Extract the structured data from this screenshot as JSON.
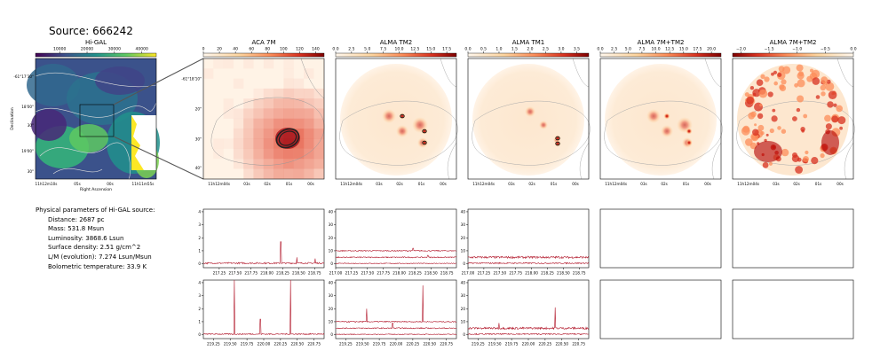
{
  "source_title": "Source: 666242",
  "params": {
    "heading": "Physical parameters of Hi-GAL source:",
    "lines": [
      "Distance: 2687 pc",
      "Mass: 531.8 Msun",
      "Luminosity: 3868.6 Lsun",
      "Surface density: 2.51 g/cm^2",
      "L/M (evolution): 7.274 Lsun/Msun",
      "Bolometric temperature: 33.9 K"
    ]
  },
  "colors": {
    "viridis_low": "#440154",
    "viridis_high": "#fde725",
    "heat_low": "#fff7ec",
    "heat_high": "#7f0000",
    "spectrum": "#b2182b"
  },
  "chart_data": [
    {
      "type": "heatmap",
      "title": "Hi-GAL",
      "xlabel": "Right Ascension",
      "ylabel": "Declination",
      "colorbar_ticks": [
        "10000",
        "20000",
        "30000",
        "40000"
      ],
      "x_ticks": [
        "11h12m10s",
        "05s",
        "00s",
        "11h11m55s"
      ],
      "y_ticks": [
        "-61°17'30\"",
        "18'00\"",
        "30\"",
        "19'00\"",
        "30\""
      ]
    },
    {
      "type": "heatmap",
      "title": "ACA 7M",
      "colorbar_ticks": [
        "0",
        "20",
        "40",
        "60",
        "80",
        "100",
        "120",
        "140"
      ],
      "x_ticks": [
        "11h12m04s",
        "03s",
        "02s",
        "01s",
        "00s"
      ],
      "y_ticks": [
        "-61°18'10\"",
        "20\"",
        "30\"",
        "40\""
      ]
    },
    {
      "type": "heatmap",
      "title": "ALMA TM2",
      "colorbar_ticks": [
        "0.0",
        "2.5",
        "5.0",
        "7.5",
        "10.0",
        "12.5",
        "15.0",
        "17.5"
      ],
      "x_ticks": [
        "11h12m04s",
        "03s",
        "02s",
        "01s",
        "00s"
      ]
    },
    {
      "type": "heatmap",
      "title": "ALMA TM1",
      "colorbar_ticks": [
        "0.0",
        "0.5",
        "1.0",
        "1.5",
        "2.0",
        "2.5",
        "3.0",
        "3.5"
      ],
      "x_ticks": [
        "11h12m04s",
        "03s",
        "02s",
        "01s",
        "00s"
      ]
    },
    {
      "type": "heatmap",
      "title": "ALMA 7M+TM2",
      "colorbar_ticks": [
        "0.0",
        "2.5",
        "5.0",
        "7.5",
        "10.0",
        "12.5",
        "15.0",
        "17.5",
        "20.0"
      ],
      "x_ticks": [
        "11h12m04s",
        "03s",
        "02s",
        "01s",
        "00s"
      ]
    },
    {
      "type": "heatmap",
      "title": "ALMA 7M+TM2",
      "colorbar_ticks": [
        "−2.0",
        "−1.5",
        "−1.0",
        "−0.5",
        "0.0"
      ],
      "x_ticks": [
        "11h12m04s",
        "03s",
        "02s",
        "01s",
        "00s"
      ]
    },
    {
      "type": "line",
      "xlim": [
        217.0,
        218.9
      ],
      "ylim": [
        -0.3,
        4.2
      ],
      "x_ticks": [
        "217.25",
        "217.50",
        "217.75",
        "218.00",
        "218.25",
        "218.50",
        "218.75"
      ],
      "y_ticks": [
        "0",
        "1",
        "2",
        "3",
        "4"
      ],
      "series": [
        {
          "baseline": 0.05,
          "noise": 0.06,
          "lines": [
            [
              218.22,
              1.65
            ],
            [
              218.47,
              0.45
            ],
            [
              218.76,
              0.35
            ]
          ]
        }
      ]
    },
    {
      "type": "line",
      "xlim": [
        217.0,
        218.9
      ],
      "ylim": [
        -3,
        42
      ],
      "x_ticks": [
        "217.00",
        "217.25",
        "217.50",
        "217.75",
        "218.00",
        "218.25",
        "218.50",
        "218.75"
      ],
      "y_ticks": [
        "0",
        "10",
        "20",
        "30",
        "40"
      ],
      "series": [
        {
          "baseline": 10,
          "noise": 0.4,
          "lines": [
            [
              218.22,
              2.0
            ]
          ]
        },
        {
          "baseline": 5,
          "noise": 0.4,
          "lines": [
            [
              218.45,
              1.5
            ]
          ]
        },
        {
          "baseline": 0.3,
          "noise": 0.3,
          "lines": []
        }
      ]
    },
    {
      "type": "line",
      "xlim": [
        217.0,
        218.9
      ],
      "ylim": [
        -3,
        42
      ],
      "x_ticks": [
        "217.00",
        "217.25",
        "217.50",
        "217.75",
        "218.00",
        "218.25",
        "218.50",
        "218.75"
      ],
      "y_ticks": [
        "0",
        "10",
        "20",
        "30",
        "40"
      ],
      "series": [
        {
          "baseline": 5,
          "noise": 0.8,
          "lines": []
        },
        {
          "baseline": 0.5,
          "noise": 0.5,
          "lines": []
        }
      ]
    },
    {
      "type": "line",
      "xlim": [
        219.1,
        220.9
      ],
      "ylim": [
        -0.3,
        4.2
      ],
      "x_ticks": [
        "219.25",
        "219.50",
        "219.75",
        "220.00",
        "220.25",
        "220.50",
        "220.75"
      ],
      "y_ticks": [
        "0",
        "1",
        "2",
        "3",
        "4"
      ],
      "series": [
        {
          "baseline": 0.05,
          "noise": 0.05,
          "lines": [
            [
              219.56,
              4.2
            ],
            [
              219.95,
              1.15
            ],
            [
              220.4,
              4.2
            ]
          ]
        }
      ]
    },
    {
      "type": "line",
      "xlim": [
        219.1,
        220.9
      ],
      "ylim": [
        -3,
        42
      ],
      "x_ticks": [
        "219.25",
        "219.50",
        "219.75",
        "220.00",
        "220.25",
        "220.50",
        "220.75"
      ],
      "y_ticks": [
        "0",
        "10",
        "20",
        "30",
        "40"
      ],
      "series": [
        {
          "baseline": 10,
          "noise": 0.4,
          "lines": [
            [
              219.56,
              10
            ],
            [
              220.4,
              28
            ]
          ]
        },
        {
          "baseline": 5,
          "noise": 0.4,
          "lines": [
            [
              219.95,
              4
            ]
          ]
        },
        {
          "baseline": 0.3,
          "noise": 0.3,
          "lines": []
        }
      ]
    },
    {
      "type": "line",
      "xlim": [
        219.1,
        220.9
      ],
      "ylim": [
        -3,
        42
      ],
      "x_ticks": [
        "219.25",
        "219.50",
        "219.75",
        "220.00",
        "220.25",
        "220.50",
        "220.75"
      ],
      "y_ticks": [
        "0",
        "10",
        "20",
        "30",
        "40"
      ],
      "series": [
        {
          "baseline": 5,
          "noise": 0.8,
          "lines": [
            [
              219.56,
              4
            ],
            [
              220.4,
              16
            ]
          ]
        },
        {
          "baseline": 0.5,
          "noise": 0.5,
          "lines": []
        }
      ]
    },
    {
      "type": "line",
      "series": []
    },
    {
      "type": "line",
      "series": []
    },
    {
      "type": "line",
      "series": []
    },
    {
      "type": "line",
      "series": []
    }
  ]
}
